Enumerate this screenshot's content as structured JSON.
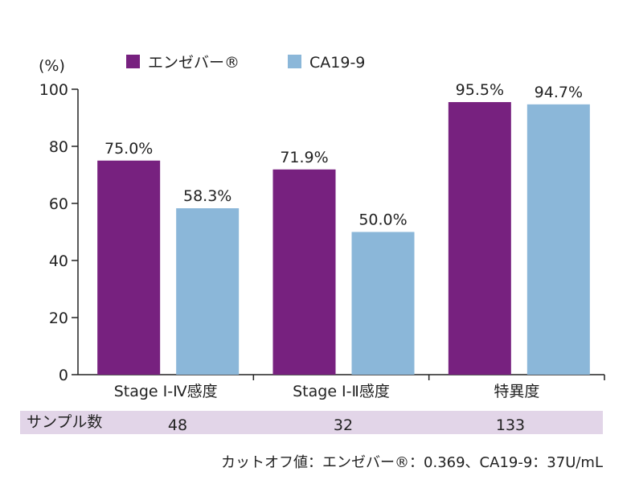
{
  "chart_data": {
    "type": "bar",
    "y_unit_label": "(%)",
    "ylim": [
      0,
      100
    ],
    "yticks": [
      0,
      20,
      40,
      60,
      80,
      100
    ],
    "grid": false,
    "legend_position": "top",
    "categories": [
      "Stage Ⅰ-Ⅳ感度",
      "Stage Ⅰ-Ⅱ感度",
      "特異度"
    ],
    "series": [
      {
        "name": "エンゼバー®",
        "color": "#77217f",
        "values": [
          75.0,
          71.9,
          95.5
        ],
        "labels": [
          "75.0%",
          "71.9%",
          "95.5%"
        ]
      },
      {
        "name": "CA19-9",
        "color": "#8bb7d9",
        "values": [
          58.3,
          50.0,
          94.7
        ],
        "labels": [
          "58.3%",
          "50.0%",
          "94.7%"
        ]
      }
    ]
  },
  "sample_table": {
    "label": "サンプル数",
    "values": [
      "48",
      "32",
      "133"
    ],
    "background": "#e2d5e8"
  },
  "footnote": "カットオフ値：エンゼバー®：0.369、CA19-9：37U/mL"
}
